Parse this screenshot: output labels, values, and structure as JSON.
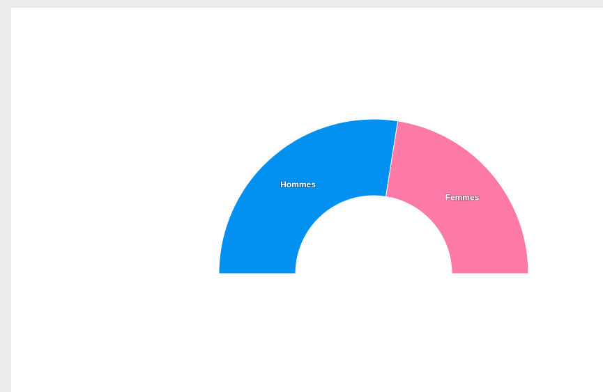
{
  "chart_data": {
    "type": "pie",
    "categories": [
      "Hommes",
      "Femmes"
    ],
    "values": [
      55,
      45
    ],
    "colors": [
      "#0391f1",
      "#fd79a8"
    ]
  }
}
